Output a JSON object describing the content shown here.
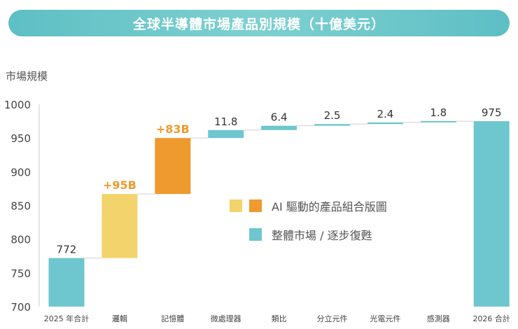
{
  "header": {
    "title": "全球半導體市場產品別規模（十億美元）"
  },
  "colors": {
    "teal": "#6ec6cf",
    "yellow": "#f3d36b",
    "orange": "#ee9a2e",
    "title_bar": "#6ec6cf",
    "axis_text": "#444444",
    "label_orange": "#ee9a2e"
  },
  "chart_data": {
    "type": "bar",
    "title": "全球半導體市場產品別規模（十億美元）",
    "ylabel": "市場規模",
    "ylim": [
      700,
      1000
    ],
    "yticks": [
      "700",
      "750",
      "800",
      "850",
      "900",
      "950",
      "1000"
    ],
    "categories": [
      "2025 年合計",
      "邏輯",
      "記憶體",
      "微處理器",
      "類比",
      "分立元件",
      "光電元件",
      "感測器",
      "2026 合計"
    ],
    "bars": [
      {
        "category": "2025 年合計",
        "start": 700,
        "end": 772,
        "label": "772",
        "color": "teal"
      },
      {
        "category": "邏輯",
        "start": 772,
        "end": 867,
        "label": "+95B",
        "color": "yellow"
      },
      {
        "category": "記憶體",
        "start": 867,
        "end": 950,
        "label": "+83B",
        "color": "orange"
      },
      {
        "category": "微處理器",
        "start": 950,
        "end": 961.8,
        "label": "11.8",
        "color": "teal"
      },
      {
        "category": "類比",
        "start": 961.8,
        "end": 968.2,
        "label": "6.4",
        "color": "teal"
      },
      {
        "category": "分立元件",
        "start": 968.2,
        "end": 970.7,
        "label": "2.5",
        "color": "teal"
      },
      {
        "category": "光電元件",
        "start": 970.7,
        "end": 973.1,
        "label": "2.4",
        "color": "teal"
      },
      {
        "category": "感測器",
        "start": 973.1,
        "end": 974.9,
        "label": "1.8",
        "color": "teal"
      },
      {
        "category": "2026 合計",
        "start": 700,
        "end": 975,
        "label": "975",
        "color": "teal"
      }
    ],
    "legend": [
      {
        "label": "AI 驅動的產品組合版圖",
        "colors": [
          "yellow",
          "orange"
        ]
      },
      {
        "label": "整體市場 / 逐步復甦",
        "colors": [
          "teal"
        ]
      }
    ],
    "legend_position": "center",
    "grid": false
  }
}
